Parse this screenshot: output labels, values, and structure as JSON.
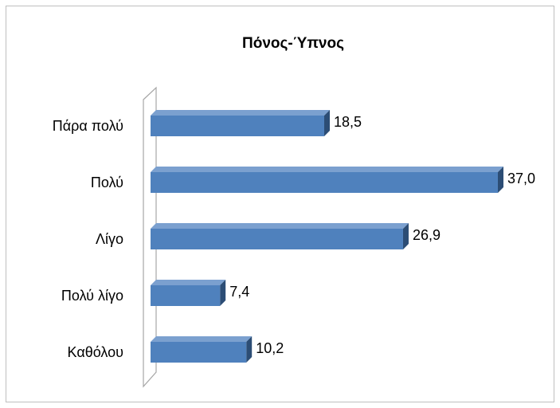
{
  "chart_data": {
    "type": "bar",
    "orientation": "horizontal",
    "title": "Πόνος-Ύπνος",
    "categories": [
      "Πάρα πολύ",
      "Πολύ",
      "Λίγο",
      "Πολύ λίγο",
      "Καθόλου"
    ],
    "values": [
      18.5,
      37.0,
      26.9,
      7.4,
      10.2
    ],
    "value_labels": [
      "18,5",
      "37,0",
      "26,9",
      "7,4",
      "10,2"
    ],
    "color": "#4f81bd"
  }
}
